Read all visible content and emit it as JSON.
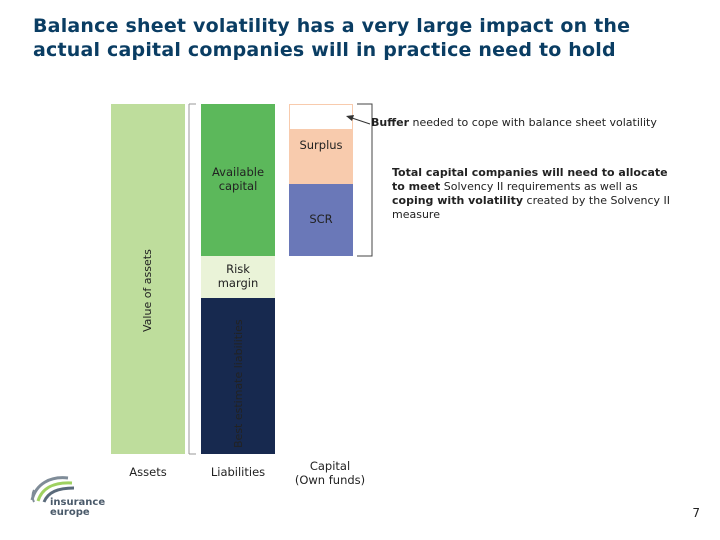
{
  "title": {
    "line1": "Balance sheet volatility has a very large impact on the",
    "line2": "actual capital companies will in practice need to hold"
  },
  "bars": {
    "assets": {
      "axis_label": "Value of assets",
      "caption": "Assets"
    },
    "liabilities": {
      "available_capital": "Available capital",
      "risk_margin": "Risk margin",
      "best_estimate": "Best estimate liabilities",
      "caption": "Liabilities"
    },
    "capital": {
      "surplus": "Surplus",
      "scr": "SCR",
      "caption_line1": "Capital",
      "caption_line2": "(Own funds)"
    }
  },
  "annotations": {
    "buffer_bold": "Buffer",
    "buffer_rest": " needed to cope with balance sheet volatility",
    "total_part1": "Total capital companies will need to allocate to meet",
    "total_part2": " Solvency II requirements as well as ",
    "total_part3": "coping with volatility",
    "total_part4": " created by the Solvency II measure"
  },
  "logo": {
    "line1": "insurance",
    "line2": "europe"
  },
  "page_number": "7",
  "colors": {
    "title": "#0a3d63",
    "assets_green": "#bedd9c",
    "capital_green": "#5cb85b",
    "risk_margin": "#eaf3d8",
    "best_estimate_navy": "#17294f",
    "buffer_white": "#ffffff",
    "surplus_peach": "#f8cbad",
    "scr_blue": "#6a78b8"
  }
}
